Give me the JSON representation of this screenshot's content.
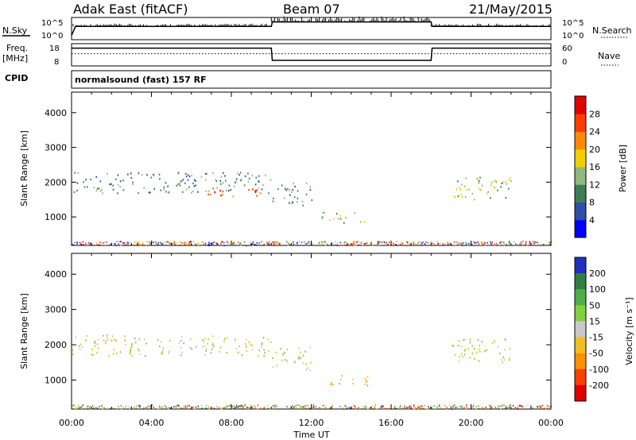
{
  "header": {
    "station": "Adak East (fitACF)",
    "beam": "Beam 07",
    "date": "21/May/2015"
  },
  "strip_labels": {
    "nsky": "N.Sky",
    "nsky_top": "10^5",
    "nsky_bot": "10^0",
    "nsearch": "N.Search",
    "nsearch_top": "10^5",
    "nsearch_bot": "10^0",
    "freq": "Freq.",
    "freq_unit": "[MHz]",
    "freq_top": "18",
    "freq_bot": "8",
    "nave": "Nave",
    "nave_top": "60",
    "nave_bot": "0",
    "cpid": "CPID",
    "cpid_value": "normalsound (fast) 157 RF"
  },
  "chart_data": [
    {
      "type": "heatmap",
      "name": "power",
      "ylabel": "Slant Range [km]",
      "xlabel": "",
      "xticks": [
        "00:00",
        "04:00",
        "08:00",
        "12:00",
        "16:00",
        "20:00",
        "00:00"
      ],
      "xlim_hours": [
        0,
        24
      ],
      "yticks": [
        1000,
        2000,
        3000,
        4000
      ],
      "ylim": [
        180,
        4590
      ],
      "colorbar": {
        "label": "Power [dB]",
        "ticks": [
          "4",
          "8",
          "12",
          "16",
          "20",
          "24",
          "28"
        ],
        "colors": [
          "#0000ff",
          "#2d4fa8",
          "#3e7d55",
          "#8fb97e",
          "#f0d000",
          "#ff8a00",
          "#ff3c00",
          "#e00000"
        ]
      },
      "regions": [
        {
          "x0": 0.0,
          "x1": 10.0,
          "y0": 1700,
          "y1": 2300,
          "level": 2
        },
        {
          "x0": 6.5,
          "x1": 9.6,
          "y0": 1600,
          "y1": 1850,
          "level": 6
        },
        {
          "x0": 10.0,
          "x1": 12.0,
          "y0": 1300,
          "y1": 2000,
          "level": 2
        },
        {
          "x0": 12.5,
          "x1": 14.8,
          "y0": 850,
          "y1": 1150,
          "level": 3
        },
        {
          "x0": 19.0,
          "x1": 22.0,
          "y0": 1500,
          "y1": 2200,
          "level": 3
        },
        {
          "x0": 14.0,
          "x1": 15.0,
          "y0": 250,
          "y1": 350,
          "level": 5
        }
      ]
    },
    {
      "type": "heatmap",
      "name": "velocity",
      "ylabel": "Slant Range [km]",
      "xlabel": "Time UT",
      "xticks": [
        "00:00",
        "04:00",
        "08:00",
        "12:00",
        "16:00",
        "20:00",
        "00:00"
      ],
      "xlim_hours": [
        0,
        24
      ],
      "yticks": [
        1000,
        2000,
        3000,
        4000
      ],
      "ylim": [
        180,
        4590
      ],
      "colorbar": {
        "label": "Velocity [m s⁻¹]",
        "ticks": [
          "200",
          "100",
          "50",
          "15",
          "-15",
          "-50",
          "-100",
          "-200"
        ],
        "colors": [
          "#2030c0",
          "#2f7f3f",
          "#4daf4a",
          "#80d040",
          "#c8c8c8",
          "#f0c020",
          "#ff9000",
          "#ff4000",
          "#e00000"
        ]
      },
      "regions": [
        {
          "x0": 0.0,
          "x1": 10.0,
          "y0": 1700,
          "y1": 2300,
          "level": 4
        },
        {
          "x0": 10.0,
          "x1": 12.0,
          "y0": 1300,
          "y1": 2000,
          "level": 4
        },
        {
          "x0": 12.5,
          "x1": 14.8,
          "y0": 850,
          "y1": 1150,
          "level": 5
        },
        {
          "x0": 19.0,
          "x1": 22.0,
          "y0": 1500,
          "y1": 2200,
          "level": 4
        }
      ]
    }
  ],
  "strips": {
    "nsky_points": [
      [
        0,
        0.2
      ],
      [
        0.2,
        0.6
      ],
      [
        10,
        0.6
      ],
      [
        10.05,
        0.8
      ],
      [
        18,
        0.8
      ],
      [
        18.05,
        0.6
      ],
      [
        24,
        0.6
      ]
    ],
    "freq_points": [
      [
        0,
        0.8
      ],
      [
        10,
        0.8
      ],
      [
        10.05,
        0.25
      ],
      [
        18,
        0.25
      ],
      [
        18.05,
        0.8
      ],
      [
        24,
        0.8
      ]
    ],
    "nave_points": [
      [
        0,
        0.55
      ],
      [
        24,
        0.55
      ]
    ]
  }
}
